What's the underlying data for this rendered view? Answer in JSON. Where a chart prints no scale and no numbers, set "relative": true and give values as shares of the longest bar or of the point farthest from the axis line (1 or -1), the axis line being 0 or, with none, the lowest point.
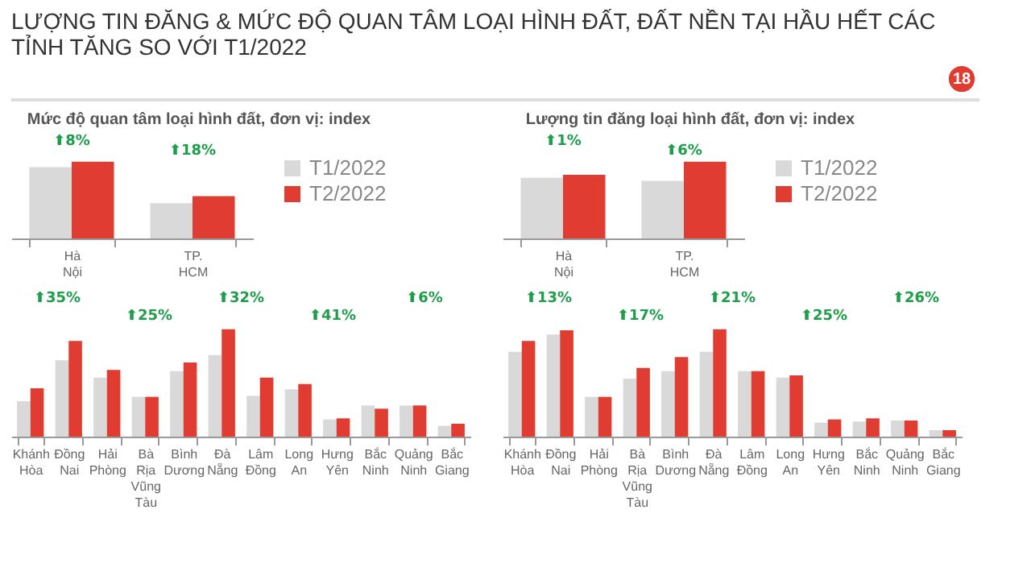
{
  "chart_data": [
    {
      "type": "other",
      "title": "LƯỢNG TIN ĐĂNG & MỨC ĐỘ QUAN TÂM LOẠI HÌNH ĐẤT, ĐẤT NỀN TẠI HẦU HẾT CÁC TỈNH TĂNG SO VỚI T1/2022",
      "annotations": [
        "18"
      ]
    },
    {
      "type": "bar",
      "title": "Mức độ quan tâm loại hình đất, đơn vị: index",
      "relative": true,
      "legend": "right",
      "categories": [
        "Hà Nội",
        "TP. HCM"
      ],
      "series": [
        {
          "name": "T1/2022",
          "color": "#d9d9d9",
          "values": [
            0.93,
            0.46
          ]
        },
        {
          "name": "T2/2022",
          "color": "#e03c31",
          "values": [
            1,
            0.55
          ]
        }
      ],
      "annotations": [
        "⬆8%",
        "⬆18%"
      ]
    },
    {
      "type": "bar",
      "relative": true,
      "categories": [
        "Khánh Hòa",
        "Đồng Nai",
        "Hải Phòng",
        "Bà Rịa Vũng Tàu",
        "Bình Dương",
        "Đà Nẵng",
        "Lâm Đồng",
        "Long An",
        "Hưng Yên",
        "Bắc Ninh",
        "Quảng Ninh",
        "Bắc Giang"
      ],
      "series": [
        {
          "color": "#d9d9d9",
          "values": [
            0.33,
            0.71,
            0.55,
            0.37,
            0.61,
            0.76,
            0.38,
            0.44,
            0.16,
            0.29,
            0.29,
            0.1
          ]
        },
        {
          "color": "#e03c31",
          "values": [
            0.45,
            0.89,
            0.62,
            0.37,
            0.69,
            1,
            0.55,
            0.49,
            0.17,
            0.26,
            0.29,
            0.12
          ]
        }
      ],
      "annotations": [
        "⬆35%",
        "⬆25%",
        "⬆32%",
        "⬆41%",
        "⬆6%"
      ]
    },
    {
      "type": "bar",
      "title": "Lượng tin đăng loại hình đất, đơn vị: index",
      "relative": true,
      "legend": "right",
      "categories": [
        "Hà Nội",
        "TP. HCM"
      ],
      "series": [
        {
          "name": "T1/2022",
          "color": "#d9d9d9",
          "values": [
            0.79,
            0.75
          ]
        },
        {
          "name": "T2/2022",
          "color": "#e03c31",
          "values": [
            0.83,
            1
          ]
        }
      ],
      "annotations": [
        "⬆1%",
        "⬆6%"
      ]
    },
    {
      "type": "bar",
      "relative": true,
      "categories": [
        "Khánh Hòa",
        "Đồng Nai",
        "Hải Phòng",
        "Bà Rịa Vũng Tàu",
        "Bình Dương",
        "Đà Nẵng",
        "Lâm Đồng",
        "Long An",
        "Hưng Yên",
        "Bắc Ninh",
        "Quảng Ninh",
        "Bắc Giang"
      ],
      "series": [
        {
          "color": "#d9d9d9",
          "values": [
            0.79,
            0.95,
            0.37,
            0.54,
            0.61,
            0.79,
            0.61,
            0.55,
            0.13,
            0.14,
            0.15,
            0.06
          ]
        },
        {
          "color": "#e03c31",
          "values": [
            0.89,
            0.99,
            0.37,
            0.64,
            0.74,
            1,
            0.61,
            0.57,
            0.16,
            0.17,
            0.15,
            0.06
          ]
        }
      ],
      "annotations": [
        "⬆13%",
        "⬆17%",
        "⬆21%",
        "⬆25%",
        "⬆26%"
      ]
    }
  ]
}
